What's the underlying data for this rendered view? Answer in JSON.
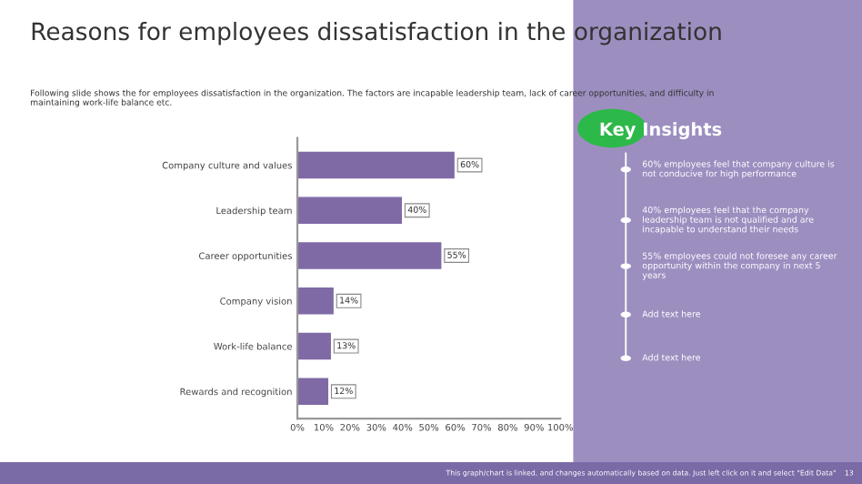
{
  "chart_data": {
    "type": "bar",
    "orientation": "horizontal",
    "title": "Reasons for employees dissatisfaction in the organization",
    "subtitle": "Following slide shows the for employees dissatisfaction in the organization. The factors are incapable leadership team, lack of career opportunities, and difficulty in maintaining work-life balance etc.",
    "categories": [
      "Company culture and values",
      "Leadership team",
      "Career opportunities",
      "Company vision",
      "Work-life balance",
      "Rewards and recognition"
    ],
    "values": [
      60,
      40,
      55,
      14,
      13,
      12
    ],
    "value_labels": [
      "60%",
      "40%",
      "55%",
      "14%",
      "13%",
      "12%"
    ],
    "color": "#7f6aa6",
    "xlim": [
      0,
      100
    ],
    "xticks": [
      {
        "value": 0,
        "label": "0%"
      },
      {
        "value": 10,
        "label": "10%"
      },
      {
        "value": 20,
        "label": "20%"
      },
      {
        "value": 30,
        "label": "30%"
      },
      {
        "value": 40,
        "label": "40%"
      },
      {
        "value": 50,
        "label": "50%"
      },
      {
        "value": 60,
        "label": "60%"
      },
      {
        "value": 70,
        "label": "70%"
      },
      {
        "value": 80,
        "label": "80%"
      },
      {
        "value": 90,
        "label": "90%"
      },
      {
        "value": 100,
        "label": "100%"
      }
    ],
    "grid": false,
    "legend": false,
    "annotations": [
      "Key Insights",
      "60% employees feel that company culture is not conducive for high performance",
      "40% employees feel that the company leadership team is not qualified and are incapable to understand their needs",
      "55% employees could not foresee any career opportunity within the company in next 5 years",
      "Add text here",
      "Add text here",
      "This graph/chart is linked, and changes automatically based on data. Just left click on it and select \"Edit Data\"",
      "13"
    ]
  }
}
